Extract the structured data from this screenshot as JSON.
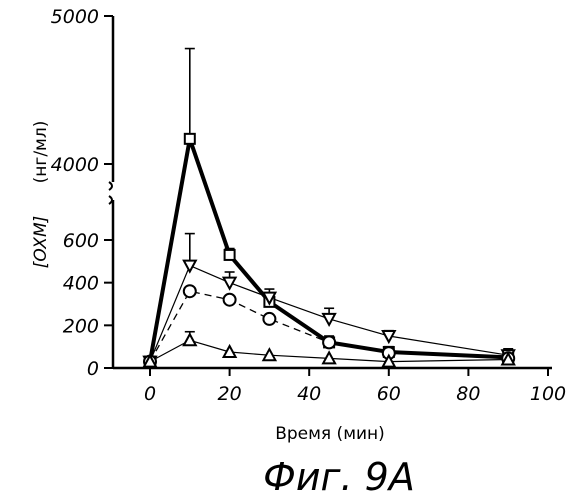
{
  "chart_data": {
    "type": "line",
    "xlabel": "Время (мин)",
    "ylabel_main": "[OXM]",
    "ylabel_unit": "(нг/мл)",
    "caption": "Фиг. 9A",
    "xlim": [
      -10,
      100
    ],
    "xticks": [
      0,
      20,
      40,
      60,
      80,
      100
    ],
    "yticks_lower": [
      0,
      200,
      400,
      600
    ],
    "yticks_upper": [
      4000,
      5000
    ],
    "y_axis_break": true,
    "series": [
      {
        "marker": "square",
        "line": "thick-solid",
        "x": [
          0,
          10,
          20,
          30,
          45,
          60,
          90
        ],
        "y": [
          30,
          4170,
          530,
          310,
          120,
          75,
          50
        ],
        "err_upper": [
          null,
          4780,
          560,
          340,
          150,
          100,
          80
        ]
      },
      {
        "marker": "triangle-down",
        "line": "thin-solid",
        "x": [
          0,
          10,
          20,
          30,
          45,
          60,
          90
        ],
        "y": [
          30,
          480,
          400,
          330,
          230,
          150,
          60
        ],
        "err_upper": [
          null,
          630,
          450,
          370,
          280,
          175,
          90
        ]
      },
      {
        "marker": "circle",
        "line": "dashed",
        "x": [
          0,
          10,
          20,
          30,
          45,
          60,
          90
        ],
        "y": [
          30,
          360,
          320,
          230,
          120,
          70,
          45
        ],
        "err_upper": [
          null,
          null,
          null,
          null,
          null,
          null,
          null
        ]
      },
      {
        "marker": "triangle-up",
        "line": "thin-solid",
        "x": [
          0,
          10,
          20,
          30,
          45,
          60,
          90
        ],
        "y": [
          30,
          130,
          75,
          60,
          45,
          30,
          40
        ],
        "err_upper": [
          null,
          170,
          null,
          null,
          null,
          null,
          null
        ]
      }
    ]
  }
}
